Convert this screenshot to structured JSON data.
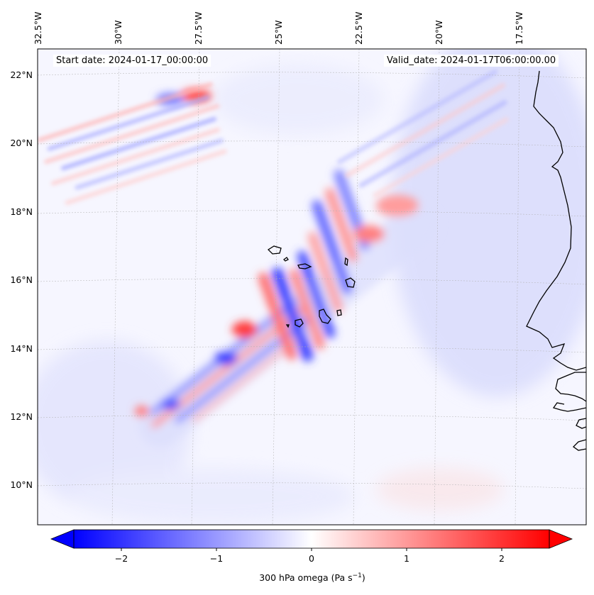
{
  "map": {
    "start_date": "Start date: 2024-01-17_00:00:00",
    "valid_date": "Valid_date: 2024-01-17T06:00:00.00",
    "lon_labels": [
      "32.5°W",
      "30°W",
      "27.5°W",
      "25°W",
      "22.5°W",
      "20°W",
      "17.5°W"
    ],
    "lat_labels": [
      "22°N",
      "20°N",
      "18°N",
      "16°N",
      "14°N",
      "12°N",
      "10°N"
    ],
    "lat_values": [
      22,
      20,
      18,
      16,
      14,
      12,
      10
    ],
    "lon_values": [
      -32.5,
      -30,
      -27.5,
      -25,
      -22.5,
      -20,
      -17.5
    ],
    "field": "300 hPa omega",
    "colormap": "bwr",
    "gridlines": true
  },
  "colorbar": {
    "label_main": "300 hPa omega (Pa s",
    "label_sup": "−1",
    "label_end": ")",
    "ticks": [
      "−2",
      "−1",
      "0",
      "1",
      "2"
    ],
    "tick_values": [
      -2,
      -1,
      0,
      1,
      2
    ],
    "range": [
      -2.5,
      2.5
    ],
    "extend": "both",
    "colors": {
      "min": "#0000ff",
      "mid": "#ffffff",
      "max": "#ff0000"
    }
  }
}
